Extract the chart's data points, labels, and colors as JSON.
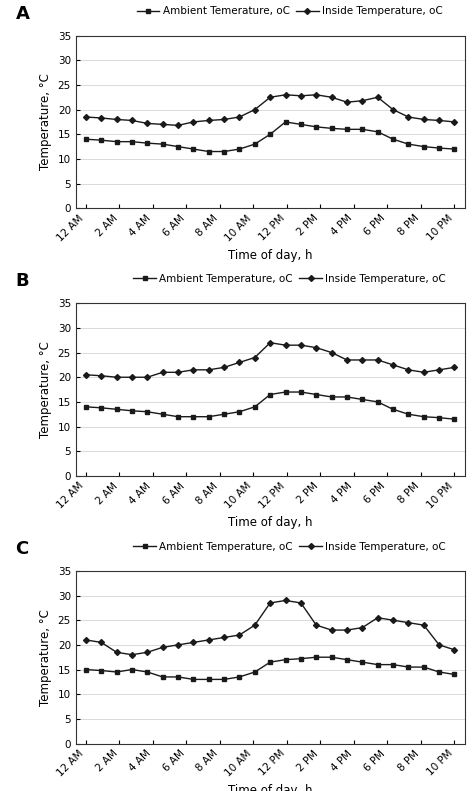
{
  "time_labels": [
    "12 AM",
    "2 AM",
    "4 AM",
    "6 AM",
    "8 AM",
    "10 AM",
    "12 PM",
    "2 PM",
    "4 PM",
    "6 PM",
    "8 PM",
    "10 PM"
  ],
  "n_points": 25,
  "panel_A": {
    "label": "A",
    "ambient": [
      14.0,
      13.8,
      13.5,
      13.5,
      13.2,
      13.0,
      12.5,
      12.0,
      11.5,
      11.5,
      12.0,
      13.0,
      15.0,
      17.5,
      17.0,
      16.5,
      16.2,
      16.0,
      16.0,
      15.5,
      14.0,
      13.0,
      12.5,
      12.2,
      12.0
    ],
    "inside": [
      18.5,
      18.3,
      18.0,
      17.8,
      17.2,
      17.0,
      16.8,
      17.5,
      17.8,
      18.0,
      18.5,
      20.0,
      22.5,
      23.0,
      22.8,
      23.0,
      22.5,
      21.5,
      21.8,
      22.5,
      20.0,
      18.5,
      18.0,
      17.8,
      17.5
    ],
    "legend_ambient": "Ambient Temerature, oC",
    "legend_inside": "Inside Temperature, oC"
  },
  "panel_B": {
    "label": "B",
    "ambient": [
      14.0,
      13.8,
      13.5,
      13.2,
      13.0,
      12.5,
      12.0,
      12.0,
      12.0,
      12.5,
      13.0,
      14.0,
      16.5,
      17.0,
      17.0,
      16.5,
      16.0,
      16.0,
      15.5,
      15.0,
      13.5,
      12.5,
      12.0,
      11.8,
      11.5
    ],
    "inside": [
      20.5,
      20.3,
      20.0,
      20.0,
      20.0,
      21.0,
      21.0,
      21.5,
      21.5,
      22.0,
      23.0,
      24.0,
      27.0,
      26.5,
      26.5,
      26.0,
      25.0,
      23.5,
      23.5,
      23.5,
      22.5,
      21.5,
      21.0,
      21.5,
      22.0
    ],
    "legend_ambient": "Ambient Temperature, oC",
    "legend_inside": "Inside Temperature, oC"
  },
  "panel_C": {
    "label": "C",
    "ambient": [
      15.0,
      14.8,
      14.5,
      15.0,
      14.5,
      13.5,
      13.5,
      13.0,
      13.0,
      13.0,
      13.5,
      14.5,
      16.5,
      17.0,
      17.2,
      17.5,
      17.5,
      17.0,
      16.5,
      16.0,
      16.0,
      15.5,
      15.5,
      14.5,
      14.0
    ],
    "inside": [
      21.0,
      20.5,
      18.5,
      18.0,
      18.5,
      19.5,
      20.0,
      20.5,
      21.0,
      21.5,
      22.0,
      24.0,
      28.5,
      29.0,
      28.5,
      24.0,
      23.0,
      23.0,
      23.5,
      25.5,
      25.0,
      24.5,
      24.0,
      20.0,
      19.0
    ],
    "legend_ambient": "Ambient Temperature, oC",
    "legend_inside": "Inside Temperature, oC"
  },
  "ylabel": "Temperature, °C",
  "xlabel": "Time of day, h",
  "ylim": [
    0,
    35
  ],
  "yticks": [
    0,
    5,
    10,
    15,
    20,
    25,
    30,
    35
  ],
  "line_color": "#1a1a1a",
  "marker_ambient": "s",
  "marker_inside": "D",
  "markersize": 3.0,
  "linewidth": 1.0,
  "fontsize_tick": 7.5,
  "fontsize_label": 8.5,
  "fontsize_legend": 7.5,
  "fontsize_panel": 13
}
